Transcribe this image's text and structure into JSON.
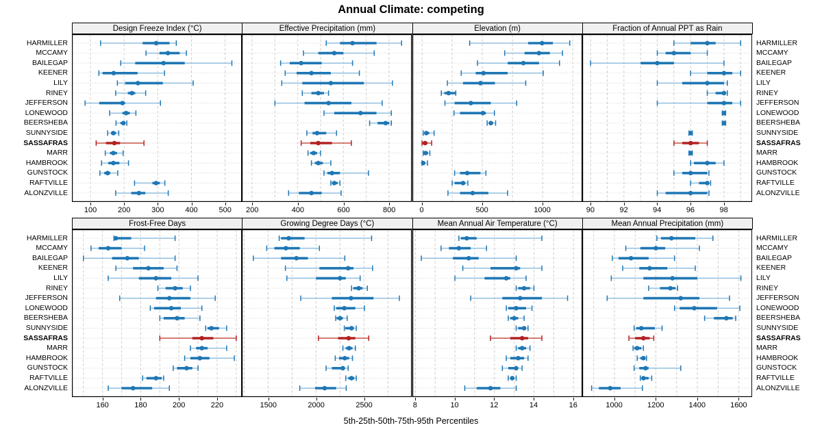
{
  "title": "Annual Climate: competing",
  "caption": "5th-25th-50th-75th-95th Percentiles",
  "highlight_station": "SASSAFRAS",
  "colors": {
    "blue": "#1f77b4",
    "blue_light": "#92bfdf",
    "red": "#b22222",
    "red_light": "#c75146",
    "grid": "#cccccc",
    "strip_bg": "#f0f0f0",
    "border": "#000000"
  },
  "stations": [
    "HARMILLER",
    "MCCAMY",
    "BAILEGAP",
    "KEENER",
    "LILY",
    "RINEY",
    "JEFFERSON",
    "LONEWOOD",
    "BEERSHEBA",
    "SUNNYSIDE",
    "SASSAFRAS",
    "MARR",
    "HAMBROOK",
    "GUNSTOCK",
    "RAFTVILLE",
    "ALONZVILLE"
  ],
  "chart_data": {
    "type": "dot-whisker-trellis",
    "layout": "2 rows x 4 columns of panels, 16 stations per panel",
    "percentile_levels": [
      5,
      25,
      50,
      75,
      95
    ],
    "panels": [
      {
        "title": "Design Freeze Index (°C)",
        "row": "top",
        "ticks": [
          100,
          200,
          300,
          400,
          500
        ],
        "grid_step": 100,
        "xlim": [
          45,
          550
        ],
        "values": {
          "HARMILLER": [
            130,
            255,
            295,
            335,
            355
          ],
          "MCCAMY": [
            265,
            305,
            330,
            365,
            385
          ],
          "BAILEGAP": [
            190,
            233,
            317,
            380,
            520
          ],
          "KEENER": [
            125,
            136,
            169,
            240,
            320
          ],
          "LILY": [
            180,
            203,
            241,
            315,
            405
          ],
          "RINEY": [
            175,
            211,
            223,
            233,
            264
          ],
          "JEFFERSON": [
            84,
            126,
            195,
            203,
            308
          ],
          "LONEWOOD": [
            157,
            195,
            206,
            217,
            235
          ],
          "BEERSHEBA": [
            176,
            189,
            198,
            204,
            208
          ],
          "SUNNYSIDE": [
            151,
            161,
            168,
            176,
            184
          ],
          "SASSAFRAS": [
            117,
            146,
            171,
            188,
            259
          ],
          "MARR": [
            144,
            158,
            168,
            179,
            197
          ],
          "HAMBROOK": [
            133,
            153,
            168,
            186,
            213
          ],
          "GUNSTOCK": [
            128,
            141,
            151,
            159,
            181
          ],
          "RAFTVILLE": [
            231,
            284,
            295,
            306,
            321
          ],
          "ALONZVILLE": [
            175,
            221,
            244,
            263,
            331
          ]
        }
      },
      {
        "title": "Effective Precipitation (mm)",
        "row": "top",
        "ticks": [
          200,
          400,
          600,
          800
        ],
        "grid_step": 100,
        "xlim": [
          155,
          900
        ],
        "values": {
          "HARMILLER": [
            525,
            585,
            640,
            745,
            855
          ],
          "MCCAMY": [
            425,
            490,
            560,
            600,
            735
          ],
          "BAILEGAP": [
            325,
            365,
            415,
            505,
            640
          ],
          "KEENER": [
            345,
            395,
            460,
            545,
            670
          ],
          "LILY": [
            330,
            420,
            545,
            690,
            815
          ],
          "RINEY": [
            420,
            460,
            490,
            515,
            535
          ],
          "JEFFERSON": [
            300,
            430,
            535,
            635,
            770
          ],
          "LONEWOOD": [
            515,
            560,
            675,
            745,
            810
          ],
          "BEERSHEBA": [
            715,
            750,
            785,
            800,
            810
          ],
          "SUNNYSIDE": [
            440,
            465,
            485,
            525,
            570
          ],
          "SASSAFRAS": [
            415,
            455,
            490,
            550,
            635
          ],
          "MARR": [
            445,
            455,
            470,
            485,
            500
          ],
          "HAMBROOK": [
            460,
            475,
            490,
            510,
            545
          ],
          "GUNSTOCK": [
            515,
            530,
            550,
            585,
            710
          ],
          "RAFTVILLE": [
            545,
            550,
            560,
            575,
            585
          ],
          "ALONZVILLE": [
            360,
            405,
            460,
            505,
            590
          ]
        }
      },
      {
        "title": "Elevation (m)",
        "row": "top",
        "ticks": [
          0,
          500,
          1000
        ],
        "grid_step": 250,
        "xlim": [
          -80,
          1330
        ],
        "values": {
          "HARMILLER": [
            395,
            880,
            995,
            1085,
            1225
          ],
          "MCCAMY": [
            685,
            850,
            970,
            1060,
            1165
          ],
          "BAILEGAP": [
            460,
            710,
            840,
            970,
            1140
          ],
          "KEENER": [
            325,
            445,
            510,
            710,
            1005
          ],
          "LILY": [
            210,
            340,
            485,
            605,
            860
          ],
          "RINEY": [
            160,
            185,
            220,
            275,
            280
          ],
          "JEFFERSON": [
            190,
            270,
            405,
            570,
            785
          ],
          "LONEWOOD": [
            265,
            315,
            505,
            530,
            600
          ],
          "BEERSHEBA": [
            540,
            555,
            570,
            590,
            610
          ],
          "SUNNYSIDE": [
            10,
            20,
            35,
            60,
            100
          ],
          "SASSAFRAS": [
            0,
            5,
            25,
            45,
            80
          ],
          "MARR": [
            10,
            20,
            30,
            50,
            65
          ],
          "HAMBROOK": [
            0,
            0,
            10,
            25,
            45
          ],
          "GUNSTOCK": [
            270,
            315,
            375,
            485,
            530
          ],
          "RAFTVILLE": [
            250,
            270,
            340,
            360,
            380
          ],
          "ALONZVILLE": [
            215,
            315,
            420,
            550,
            710
          ]
        }
      },
      {
        "title": "Fraction of Annual PPT as Rain",
        "row": "top",
        "ticks": [
          90,
          92,
          94,
          96,
          98
        ],
        "grid_step": 1,
        "xlim": [
          89.5,
          99.7
        ],
        "values": {
          "HARMILLER": [
            95,
            96,
            97,
            97.5,
            99
          ],
          "MCCAMY": [
            94,
            94.5,
            95,
            96,
            97
          ],
          "BAILEGAP": [
            90,
            93,
            94,
            95,
            98
          ],
          "KEENER": [
            96,
            97,
            98,
            98.5,
            99
          ],
          "LILY": [
            94,
            95.5,
            97,
            98,
            98.2
          ],
          "RINEY": [
            97,
            97.5,
            98,
            98.1,
            98.2
          ],
          "JEFFERSON": [
            94,
            97,
            98,
            98.5,
            99
          ],
          "LONEWOOD": [
            97.9,
            98,
            98,
            98,
            98.1
          ],
          "BEERSHEBA": [
            97.9,
            98,
            98,
            98,
            98.1
          ],
          "SUNNYSIDE": [
            95.9,
            96,
            96,
            96,
            96.1
          ],
          "SASSAFRAS": [
            95,
            95.5,
            96,
            96.5,
            97
          ],
          "MARR": [
            95.9,
            96,
            96,
            96,
            96.1
          ],
          "HAMBROOK": [
            96,
            96.2,
            97,
            97.5,
            98
          ],
          "GUNSTOCK": [
            95,
            95.5,
            96,
            97,
            97.1
          ],
          "RAFTVILLE": [
            96,
            96.5,
            97,
            97.1,
            97.2
          ],
          "ALONZVILLE": [
            94,
            94.5,
            96,
            97,
            97.1
          ]
        }
      },
      {
        "title": "Frost-Free Days",
        "row": "bottom",
        "ticks": [
          160,
          180,
          200,
          220
        ],
        "grid_step": 10,
        "xlim": [
          144,
          233
        ],
        "values": {
          "HARMILLER": [
            166,
            166,
            167,
            175,
            198
          ],
          "MCCAMY": [
            154,
            158,
            163,
            170,
            182
          ],
          "BAILEGAP": [
            150,
            165,
            173,
            179,
            198
          ],
          "KEENER": [
            167,
            176,
            184,
            192,
            199
          ],
          "LILY": [
            163,
            179,
            188,
            196,
            210
          ],
          "RINEY": [
            189,
            193,
            198,
            202,
            206
          ],
          "JEFFERSON": [
            169,
            188,
            195,
            206,
            219
          ],
          "LONEWOOD": [
            185,
            187,
            196,
            201,
            212
          ],
          "BEERSHEBA": [
            190,
            192,
            199,
            203,
            211
          ],
          "SUNNYSIDE": [
            214,
            215,
            217,
            221,
            225
          ],
          "SASSAFRAS": [
            190,
            207,
            212,
            218,
            230
          ],
          "MARR": [
            206,
            209,
            212,
            215,
            225
          ],
          "HAMBROOK": [
            203,
            206,
            211,
            216,
            229
          ],
          "GUNSTOCK": [
            197,
            199,
            204,
            207,
            210
          ],
          "RAFTVILLE": [
            181,
            183,
            188,
            191,
            192
          ],
          "ALONZVILLE": [
            163,
            170,
            176,
            186,
            195
          ]
        }
      },
      {
        "title": "Growing Degree Days (°C)",
        "row": "bottom",
        "ticks": [
          1500,
          2000,
          2500
        ],
        "grid_step": 250,
        "xlim": [
          1225,
          3000
        ],
        "values": {
          "HARMILLER": [
            1615,
            1635,
            1715,
            1880,
            2580
          ],
          "MCCAMY": [
            1485,
            1565,
            1685,
            1830,
            2035
          ],
          "BAILEGAP": [
            1345,
            1635,
            1795,
            1915,
            2300
          ],
          "KEENER": [
            1680,
            2035,
            2335,
            2390,
            2590
          ],
          "LILY": [
            1695,
            2000,
            2250,
            2310,
            2460
          ],
          "RINEY": [
            2370,
            2390,
            2445,
            2485,
            2535
          ],
          "JEFFERSON": [
            1840,
            2165,
            2365,
            2600,
            2870
          ],
          "LONEWOOD": [
            2190,
            2210,
            2295,
            2410,
            2505
          ],
          "BEERSHEBA": [
            2205,
            2215,
            2250,
            2280,
            2325
          ],
          "SUNNYSIDE": [
            2295,
            2305,
            2370,
            2395,
            2420
          ],
          "SASSAFRAS": [
            2025,
            2230,
            2340,
            2410,
            2550
          ],
          "MARR": [
            2280,
            2310,
            2345,
            2380,
            2410
          ],
          "HAMBROOK": [
            2200,
            2240,
            2300,
            2345,
            2380
          ],
          "GUNSTOCK": [
            2105,
            2165,
            2280,
            2295,
            2335
          ],
          "RAFTVILLE": [
            2310,
            2335,
            2370,
            2400,
            2420
          ],
          "ALONZVILLE": [
            1830,
            1990,
            2090,
            2210,
            2315
          ]
        }
      },
      {
        "title": "Mean Annual Air Temperature (°C)",
        "row": "bottom",
        "ticks": [
          8,
          10,
          12,
          14,
          16
        ],
        "grid_step": 1,
        "xlim": [
          7.85,
          16.45
        ],
        "values": {
          "HARMILLER": [
            10.2,
            10.3,
            10.6,
            11.1,
            14.4
          ],
          "MCCAMY": [
            9.3,
            9.7,
            10.2,
            10.8,
            11.6
          ],
          "BAILEGAP": [
            8.3,
            9.9,
            10.7,
            11.2,
            13.1
          ],
          "KEENER": [
            10.4,
            11.8,
            13.1,
            13.3,
            14.4
          ],
          "LILY": [
            10.0,
            11.5,
            12.6,
            12.8,
            13.6
          ],
          "RINEY": [
            13.1,
            13.2,
            13.5,
            13.8,
            14.0
          ],
          "JEFFERSON": [
            10.8,
            12.4,
            13.3,
            14.4,
            15.7
          ],
          "LONEWOOD": [
            12.6,
            12.7,
            13.1,
            13.6,
            13.9
          ],
          "BEERSHEBA": [
            12.7,
            12.8,
            13.0,
            13.2,
            13.5
          ],
          "SUNNYSIDE": [
            13.1,
            13.2,
            13.5,
            13.6,
            13.7
          ],
          "SASSAFRAS": [
            11.8,
            12.8,
            13.4,
            13.7,
            14.4
          ],
          "MARR": [
            13.1,
            13.2,
            13.4,
            13.6,
            13.8
          ],
          "HAMBROOK": [
            12.6,
            12.8,
            13.2,
            13.5,
            13.7
          ],
          "GUNSTOCK": [
            12.4,
            12.7,
            13.1,
            13.2,
            13.4
          ],
          "RAFTVILLE": [
            12.7,
            12.8,
            12.9,
            13.0,
            13.1
          ],
          "ALONZVILLE": [
            10.5,
            11.1,
            11.8,
            12.3,
            13.1
          ]
        }
      },
      {
        "title": "Mean Annual Precipitation (mm)",
        "row": "bottom",
        "ticks": [
          1000,
          1200,
          1400,
          1600
        ],
        "grid_step": 100,
        "xlim": [
          845,
          1665
        ],
        "values": {
          "HARMILLER": [
            1205,
            1225,
            1275,
            1390,
            1475
          ],
          "MCCAMY": [
            1055,
            1125,
            1200,
            1245,
            1410
          ],
          "BAILEGAP": [
            990,
            1020,
            1080,
            1165,
            1290
          ],
          "KEENER": [
            1040,
            1120,
            1170,
            1255,
            1390
          ],
          "LILY": [
            985,
            1140,
            1280,
            1400,
            1610
          ],
          "RINEY": [
            1165,
            1220,
            1270,
            1295,
            1305
          ],
          "JEFFERSON": [
            965,
            1140,
            1320,
            1410,
            1555
          ],
          "LONEWOOD": [
            1290,
            1315,
            1385,
            1495,
            1605
          ],
          "BEERSHEBA": [
            1435,
            1480,
            1540,
            1570,
            1585
          ],
          "SUNNYSIDE": [
            1095,
            1105,
            1130,
            1195,
            1230
          ],
          "SASSAFRAS": [
            1070,
            1100,
            1140,
            1170,
            1190
          ],
          "MARR": [
            1090,
            1095,
            1110,
            1130,
            1140
          ],
          "HAMBROOK": [
            1110,
            1125,
            1140,
            1150,
            1155
          ],
          "GUNSTOCK": [
            1095,
            1120,
            1150,
            1165,
            1320
          ],
          "RAFTVILLE": [
            1125,
            1130,
            1140,
            1165,
            1180
          ],
          "ALONZVILLE": [
            890,
            925,
            980,
            1030,
            1135
          ]
        }
      }
    ]
  }
}
